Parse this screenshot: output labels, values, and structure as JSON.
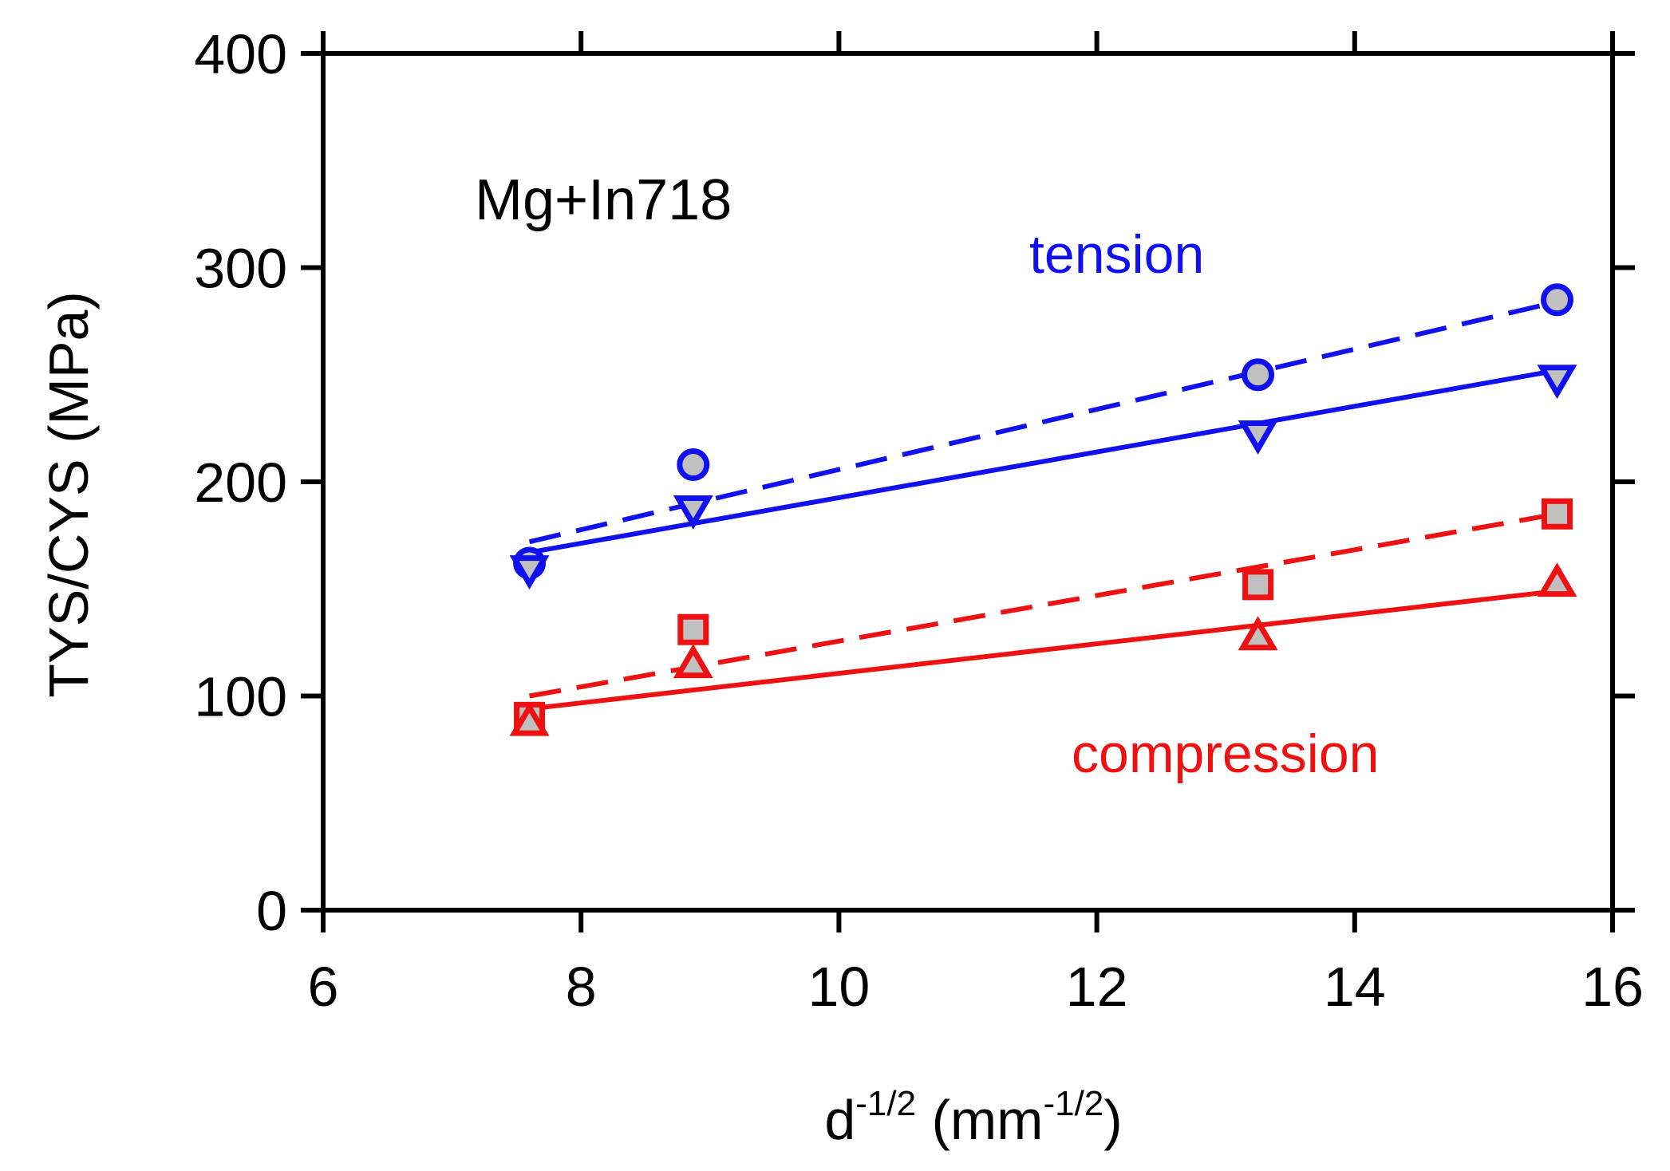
{
  "chart_data": {
    "type": "scatter",
    "title": "",
    "xlabel": {
      "base": "d",
      "base_sup": "-1/2",
      "open": " (mm",
      "unit_sup": "-1/2",
      "close": ")"
    },
    "ylabel": "TYS/CYS (MPa)",
    "xlim": [
      6,
      16
    ],
    "ylim": [
      0,
      400
    ],
    "xticks": [
      6,
      8,
      10,
      12,
      14,
      16
    ],
    "yticks": [
      0,
      100,
      200,
      300,
      400
    ],
    "xtick_labels": [
      "6",
      "8",
      "10",
      "12",
      "14",
      "16"
    ],
    "ytick_labels": [
      "0",
      "100",
      "200",
      "300",
      "400"
    ],
    "grid": false,
    "annotations": {
      "material": "Mg+In718",
      "tension": "tension",
      "compression": "compression"
    },
    "colors": {
      "tension": "#1111ee",
      "compression": "#ee1111",
      "marker_fill": "#c0c0c0"
    },
    "series": [
      {
        "name": "tension-circle",
        "marker": "circle",
        "color": "#1111ee",
        "x": [
          7.6,
          8.87,
          13.25,
          15.57
        ],
        "y": [
          162,
          208,
          250,
          285
        ],
        "fit": {
          "style": "dashed",
          "x": [
            7.6,
            15.57
          ],
          "y": [
            172,
            284
          ]
        }
      },
      {
        "name": "tension-triangle-down",
        "marker": "triangle-down",
        "color": "#1111ee",
        "x": [
          7.6,
          8.87,
          13.25,
          15.57
        ],
        "y": [
          159,
          187,
          222,
          248
        ],
        "fit": {
          "style": "solid",
          "x": [
            7.6,
            15.57
          ],
          "y": [
            167,
            252
          ]
        }
      },
      {
        "name": "compression-square",
        "marker": "square",
        "color": "#ee1111",
        "x": [
          7.6,
          8.87,
          13.25,
          15.57
        ],
        "y": [
          90,
          131,
          152,
          185
        ],
        "fit": {
          "style": "dashed",
          "x": [
            7.6,
            15.57
          ],
          "y": [
            100,
            185
          ]
        }
      },
      {
        "name": "compression-triangle-up",
        "marker": "triangle-up",
        "color": "#ee1111",
        "x": [
          7.6,
          8.87,
          13.25,
          15.57
        ],
        "y": [
          88,
          115,
          128,
          153
        ],
        "fit": {
          "style": "solid",
          "x": [
            7.6,
            15.57
          ],
          "y": [
            94,
            149
          ]
        }
      }
    ]
  }
}
